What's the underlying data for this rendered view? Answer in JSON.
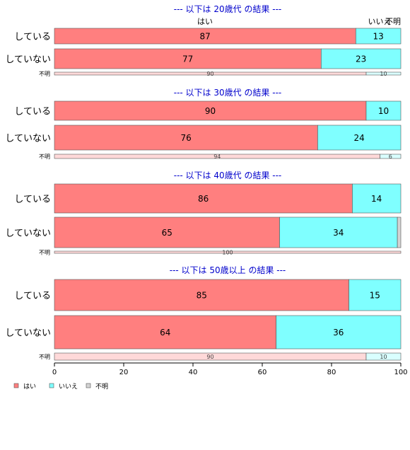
{
  "chart_data": {
    "type": "bar",
    "orientation": "horizontal",
    "stacked": true,
    "xlim": [
      0,
      100
    ],
    "x_ticks": [
      "0",
      "20",
      "40",
      "60",
      "80",
      "100"
    ],
    "top_series_labels": [
      "はい",
      "いいえ",
      "不明"
    ],
    "legend_position": "bottom-left",
    "legend": [
      {
        "name": "はい",
        "color": "#ff7f7f"
      },
      {
        "name": "いいえ",
        "color": "#7fffff"
      },
      {
        "name": "不明",
        "color": "#d3d3d3"
      }
    ],
    "groups": [
      {
        "title": "--- 以下は 20歳代 の結果 ---",
        "rows": [
          {
            "label": "している",
            "values": [
              87,
              13,
              0
            ],
            "value_labels": [
              "87",
              "13",
              ""
            ]
          },
          {
            "label": "していない",
            "values": [
              77,
              23,
              0
            ],
            "value_labels": [
              "77",
              "23",
              ""
            ]
          },
          {
            "label": "不明",
            "minor": true,
            "values": [
              90,
              10,
              0
            ],
            "value_labels": [
              "90",
              "10",
              ""
            ]
          }
        ]
      },
      {
        "title": "--- 以下は 30歳代 の結果 ---",
        "rows": [
          {
            "label": "している",
            "values": [
              90,
              10,
              0
            ],
            "value_labels": [
              "90",
              "10",
              ""
            ]
          },
          {
            "label": "していない",
            "values": [
              76,
              24,
              0
            ],
            "value_labels": [
              "76",
              "24",
              ""
            ]
          },
          {
            "label": "不明",
            "minor": true,
            "values": [
              94,
              6,
              0
            ],
            "value_labels": [
              "94",
              "6",
              ""
            ]
          }
        ]
      },
      {
        "title": "--- 以下は 40歳代 の結果 ---",
        "rows": [
          {
            "label": "している",
            "values": [
              86,
              14,
              0
            ],
            "value_labels": [
              "86",
              "14",
              ""
            ]
          },
          {
            "label": "していない",
            "values": [
              65,
              34,
              1
            ],
            "value_labels": [
              "65",
              "34",
              ""
            ]
          },
          {
            "label": "不明",
            "minor": true,
            "values": [
              100,
              0,
              0
            ],
            "value_labels": [
              "100",
              "",
              ""
            ]
          }
        ]
      },
      {
        "title": "--- 以下は 50歳以上 の結果 ---",
        "rows": [
          {
            "label": "している",
            "values": [
              85,
              15,
              0
            ],
            "value_labels": [
              "85",
              "15",
              ""
            ]
          },
          {
            "label": "していない",
            "values": [
              64,
              36,
              0
            ],
            "value_labels": [
              "64",
              "36",
              ""
            ]
          },
          {
            "label": "不明",
            "minor": true,
            "values": [
              90,
              10,
              0
            ],
            "value_labels": [
              "90",
              "10",
              ""
            ]
          }
        ]
      }
    ],
    "colors": {
      "yes": "#ff7f7f",
      "no": "#7fffff",
      "unknown": "#d3d3d3",
      "yes_light": "#ffd9d9",
      "no_light": "#d9ffff",
      "title": "#0000cc",
      "border": "#555555"
    }
  }
}
